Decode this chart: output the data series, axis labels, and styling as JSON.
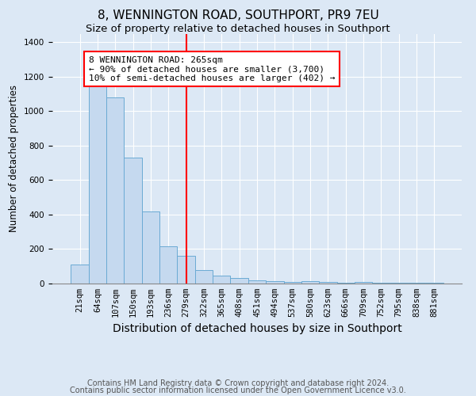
{
  "title": "8, WENNINGTON ROAD, SOUTHPORT, PR9 7EU",
  "subtitle": "Size of property relative to detached houses in Southport",
  "xlabel": "Distribution of detached houses by size in Southport",
  "ylabel": "Number of detached properties",
  "bar_labels": [
    "21sqm",
    "64sqm",
    "107sqm",
    "150sqm",
    "193sqm",
    "236sqm",
    "279sqm",
    "322sqm",
    "365sqm",
    "408sqm",
    "451sqm",
    "494sqm",
    "537sqm",
    "580sqm",
    "623sqm",
    "666sqm",
    "709sqm",
    "752sqm",
    "795sqm",
    "838sqm",
    "881sqm"
  ],
  "bar_values": [
    110,
    1150,
    1080,
    730,
    415,
    215,
    160,
    75,
    45,
    30,
    18,
    12,
    8,
    12,
    7,
    3,
    5,
    2,
    1,
    1,
    1
  ],
  "bar_color": "#c5d9ef",
  "bar_edge_color": "#6aaad4",
  "vline_x_index": 6,
  "vline_color": "red",
  "annotation_text": "8 WENNINGTON ROAD: 265sqm\n← 90% of detached houses are smaller (3,700)\n10% of semi-detached houses are larger (402) →",
  "annotation_box_facecolor": "white",
  "annotation_box_edgecolor": "red",
  "ylim": [
    0,
    1450
  ],
  "yticks": [
    0,
    200,
    400,
    600,
    800,
    1000,
    1200,
    1400
  ],
  "footnote_line1": "Contains HM Land Registry data © Crown copyright and database right 2024.",
  "footnote_line2": "Contains public sector information licensed under the Open Government Licence v3.0.",
  "background_color": "#dce8f5",
  "plot_bg_color": "#dce8f5",
  "title_fontsize": 11,
  "subtitle_fontsize": 9.5,
  "xlabel_fontsize": 10,
  "ylabel_fontsize": 8.5,
  "tick_fontsize": 7.5,
  "annotation_fontsize": 8,
  "footnote_fontsize": 7
}
